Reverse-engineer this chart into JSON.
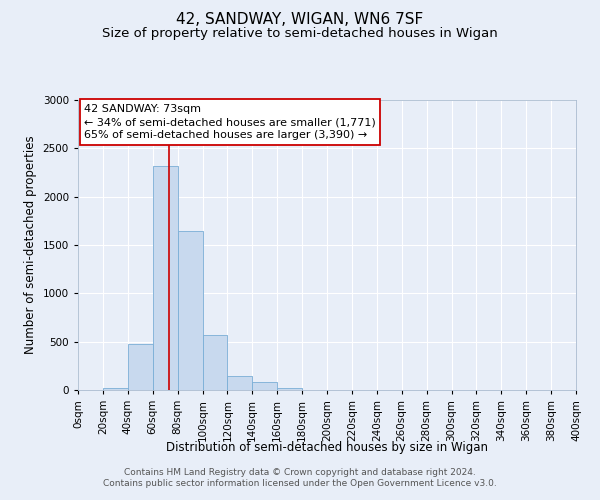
{
  "title": "42, SANDWAY, WIGAN, WN6 7SF",
  "subtitle": "Size of property relative to semi-detached houses in Wigan",
  "xlabel": "Distribution of semi-detached houses by size in Wigan",
  "ylabel": "Number of semi-detached properties",
  "bin_edges": [
    0,
    20,
    40,
    60,
    80,
    100,
    120,
    140,
    160,
    180,
    200,
    220,
    240,
    260,
    280,
    300,
    320,
    340,
    360,
    380,
    400
  ],
  "bin_counts": [
    5,
    20,
    480,
    2320,
    1640,
    570,
    150,
    80,
    25,
    5,
    2,
    1,
    0,
    0,
    0,
    0,
    0,
    0,
    0,
    0
  ],
  "bar_color": "#c8d9ee",
  "bar_edgecolor": "#7aaed6",
  "property_size": 73,
  "vline_color": "#cc0000",
  "annotation_line1": "42 SANDWAY: 73sqm",
  "annotation_line2": "← 34% of semi-detached houses are smaller (1,771)",
  "annotation_line3": "65% of semi-detached houses are larger (3,390) →",
  "annotation_box_edgecolor": "#cc0000",
  "annotation_box_facecolor": "#ffffff",
  "ylim": [
    0,
    3000
  ],
  "xlim": [
    0,
    400
  ],
  "yticks": [
    0,
    500,
    1000,
    1500,
    2000,
    2500,
    3000
  ],
  "xtick_labels": [
    "0sqm",
    "20sqm",
    "40sqm",
    "60sqm",
    "80sqm",
    "100sqm",
    "120sqm",
    "140sqm",
    "160sqm",
    "180sqm",
    "200sqm",
    "220sqm",
    "240sqm",
    "260sqm",
    "280sqm",
    "300sqm",
    "320sqm",
    "340sqm",
    "360sqm",
    "380sqm",
    "400sqm"
  ],
  "footer_line1": "Contains HM Land Registry data © Crown copyright and database right 2024.",
  "footer_line2": "Contains public sector information licensed under the Open Government Licence v3.0.",
  "bg_color": "#e8eef8",
  "plot_bg_color": "#e8eef8",
  "grid_color": "#ffffff",
  "title_fontsize": 11,
  "subtitle_fontsize": 9.5,
  "axis_label_fontsize": 8.5,
  "tick_fontsize": 7.5,
  "annotation_fontsize": 8,
  "footer_fontsize": 6.5
}
